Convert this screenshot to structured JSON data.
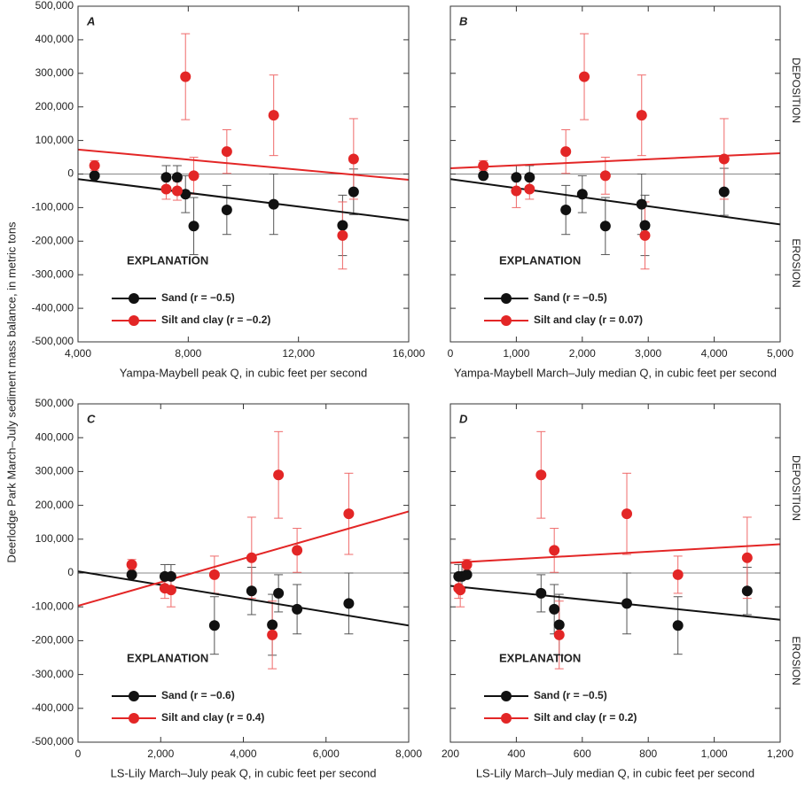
{
  "y_label": "Deerlodge Park March–July sediment mass balance, in metric tons",
  "chart_data": [
    {
      "type": "scatter",
      "panel": "A",
      "xlabel": "Yampa-Maybell peak Q, in cubic feet per second",
      "xlim": [
        4000,
        16000
      ],
      "xticks": [
        {
          "value": 4000,
          "label": "4,000"
        },
        {
          "value": 8000,
          "label": "8,000"
        },
        {
          "value": 12000,
          "label": "12,000"
        },
        {
          "value": 16000,
          "label": "16,000"
        }
      ],
      "ylim": [
        -500000,
        500000
      ],
      "yticks": [
        {
          "value": -500000,
          "label": "-500,000"
        },
        {
          "value": -400000,
          "label": "-400,000"
        },
        {
          "value": -300000,
          "label": "-300,000"
        },
        {
          "value": -200000,
          "label": "-200,000"
        },
        {
          "value": -100000,
          "label": "-100,000"
        },
        0,
        {
          "value": 100000,
          "label": "100,000"
        },
        {
          "value": 200000,
          "label": "200,000"
        },
        {
          "value": 300000,
          "label": "300,000"
        },
        {
          "value": 400000,
          "label": "400,000"
        },
        {
          "value": 500000,
          "label": "500,000"
        }
      ],
      "legend_title": "EXPLANATION",
      "series": [
        {
          "name": "Sand (r = −0.5)",
          "color": "#111111",
          "x": [
            4600,
            7200,
            7600,
            7900,
            8200,
            9400,
            11100,
            13600,
            14000
          ],
          "values": [
            -5000,
            -10000,
            -10000,
            -60000,
            -155000,
            -107000,
            -90000,
            -153000,
            -53000
          ],
          "errors": [
            0,
            35000,
            35000,
            55000,
            85000,
            73000,
            90000,
            90000,
            68000
          ],
          "trend_x": [
            4000,
            16000
          ],
          "trend_values": [
            -15000,
            -138000
          ]
        },
        {
          "name": "Silt and clay (r = −0.2)",
          "color": "#e32626",
          "x": [
            4600,
            7200,
            7600,
            7900,
            8200,
            9400,
            11100,
            13600,
            14000
          ],
          "values": [
            25000,
            -45000,
            -50000,
            290000,
            -5000,
            67000,
            175000,
            -183000,
            45000
          ],
          "errors": [
            15000,
            30000,
            28000,
            128000,
            55000,
            65000,
            120000,
            100000,
            120000
          ],
          "trend_x": [
            4000,
            16000
          ],
          "trend_values": [
            73000,
            -17000
          ]
        }
      ]
    },
    {
      "type": "scatter",
      "panel": "B",
      "xlabel": "Yampa-Maybell March–July median Q, in cubic feet per second",
      "side_labels": [
        "DEPOSITION",
        "EROSION"
      ],
      "xlim": [
        0,
        5000
      ],
      "xticks": [
        0,
        {
          "value": 1000,
          "label": "1,000"
        },
        {
          "value": 2000,
          "label": "2,000"
        },
        {
          "value": 3000,
          "label": "3,000"
        },
        {
          "value": 4000,
          "label": "4,000"
        },
        {
          "value": 5000,
          "label": "5,000"
        }
      ],
      "ylim": [
        -500000,
        500000
      ],
      "yticks": [
        -500000,
        -400000,
        -300000,
        -200000,
        -100000,
        0,
        100000,
        200000,
        300000,
        400000,
        500000
      ],
      "legend_title": "EXPLANATION",
      "series": [
        {
          "name": "Sand (r = −0.5)",
          "color": "#111111",
          "x": [
            500,
            1000,
            1200,
            1750,
            2000,
            2350,
            2900,
            2950,
            4150
          ],
          "values": [
            -5000,
            -10000,
            -10000,
            -107000,
            -60000,
            -155000,
            -90000,
            -153000,
            -53000
          ],
          "errors": [
            0,
            35000,
            35000,
            73000,
            55000,
            85000,
            90000,
            90000,
            70000
          ],
          "trend_x": [
            0,
            5000
          ],
          "trend_values": [
            -15000,
            -150000
          ]
        },
        {
          "name": "Silt and clay (r = 0.07)",
          "color": "#e32626",
          "x": [
            500,
            1000,
            1200,
            1750,
            2030,
            2350,
            2900,
            2950,
            4150
          ],
          "values": [
            25000,
            -50000,
            -45000,
            67000,
            290000,
            -5000,
            175000,
            -183000,
            45000
          ],
          "errors": [
            15000,
            50000,
            30000,
            65000,
            128000,
            55000,
            120000,
            100000,
            120000
          ],
          "trend_x": [
            0,
            5000
          ],
          "trend_values": [
            17000,
            62000
          ]
        }
      ]
    },
    {
      "type": "scatter",
      "panel": "C",
      "xlabel": "LS-Lily March–July peak Q, in cubic feet per second",
      "xlim": [
        0,
        8000
      ],
      "xticks": [
        0,
        {
          "value": 2000,
          "label": "2,000"
        },
        {
          "value": 4000,
          "label": "4,000"
        },
        {
          "value": 6000,
          "label": "6,000"
        },
        {
          "value": 8000,
          "label": "8,000"
        }
      ],
      "ylim": [
        -500000,
        500000
      ],
      "yticks": [
        {
          "value": -500000,
          "label": "-500,000"
        },
        {
          "value": -400000,
          "label": "-400,000"
        },
        {
          "value": -300000,
          "label": "-300,000"
        },
        {
          "value": -200000,
          "label": "-200,000"
        },
        {
          "value": -100000,
          "label": "-100,000"
        },
        0,
        {
          "value": 100000,
          "label": "100,000"
        },
        {
          "value": 200000,
          "label": "200,000"
        },
        {
          "value": 300000,
          "label": "300,000"
        },
        {
          "value": 400000,
          "label": "400,000"
        },
        {
          "value": 500000,
          "label": "500,000"
        }
      ],
      "legend_title": "EXPLANATION",
      "series": [
        {
          "name": "Sand (r = −0.6)",
          "color": "#111111",
          "x": [
            1300,
            2100,
            2250,
            3300,
            4200,
            4700,
            4850,
            5300,
            6550
          ],
          "values": [
            -5000,
            -10000,
            -10000,
            -155000,
            -53000,
            -153000,
            -60000,
            -107000,
            -90000
          ],
          "errors": [
            0,
            35000,
            35000,
            85000,
            70000,
            90000,
            55000,
            73000,
            90000
          ],
          "trend_x": [
            0,
            8000
          ],
          "trend_values": [
            5000,
            -155000
          ]
        },
        {
          "name": "Silt and clay (r = 0.4)",
          "color": "#e32626",
          "x": [
            1300,
            2100,
            2250,
            3300,
            4200,
            4700,
            4850,
            5300,
            6550
          ],
          "values": [
            25000,
            -45000,
            -50000,
            -5000,
            45000,
            -183000,
            290000,
            67000,
            175000
          ],
          "errors": [
            15000,
            30000,
            50000,
            55000,
            120000,
            100000,
            128000,
            65000,
            120000
          ],
          "trend_x": [
            0,
            8000
          ],
          "trend_values": [
            -97000,
            182000
          ]
        }
      ]
    },
    {
      "type": "scatter",
      "panel": "D",
      "xlabel": "LS-Lily March–July median Q, in cubic feet per second",
      "side_labels": [
        "DEPOSITION",
        "EROSION"
      ],
      "xlim": [
        200,
        1200
      ],
      "xticks": [
        200,
        400,
        600,
        800,
        {
          "value": 1000,
          "label": "1,000"
        },
        {
          "value": 1200,
          "label": "1,200"
        }
      ],
      "ylim": [
        -500000,
        500000
      ],
      "yticks": [
        -500000,
        -400000,
        -300000,
        -200000,
        -100000,
        0,
        100000,
        200000,
        300000,
        400000,
        500000
      ],
      "legend_title": "EXPLANATION",
      "series": [
        {
          "name": "Sand (r = −0.5)",
          "color": "#111111",
          "x": [
            225,
            235,
            250,
            475,
            515,
            530,
            735,
            890,
            1100
          ],
          "values": [
            -10000,
            -10000,
            -5000,
            -60000,
            -107000,
            -153000,
            -90000,
            -155000,
            -53000
          ],
          "errors": [
            35000,
            35000,
            0,
            55000,
            73000,
            90000,
            90000,
            85000,
            70000
          ],
          "trend_x": [
            200,
            1200
          ],
          "trend_values": [
            -38000,
            -138000
          ]
        },
        {
          "name": "Silt and clay (r = 0.2)",
          "color": "#e32626",
          "x": [
            225,
            230,
            250,
            475,
            515,
            530,
            735,
            890,
            1100
          ],
          "values": [
            -45000,
            -50000,
            25000,
            290000,
            67000,
            -183000,
            175000,
            -5000,
            45000
          ],
          "errors": [
            30000,
            50000,
            15000,
            128000,
            65000,
            100000,
            120000,
            55000,
            120000
          ],
          "trend_x": [
            200,
            1200
          ],
          "trend_values": [
            30000,
            85000
          ]
        }
      ]
    }
  ]
}
